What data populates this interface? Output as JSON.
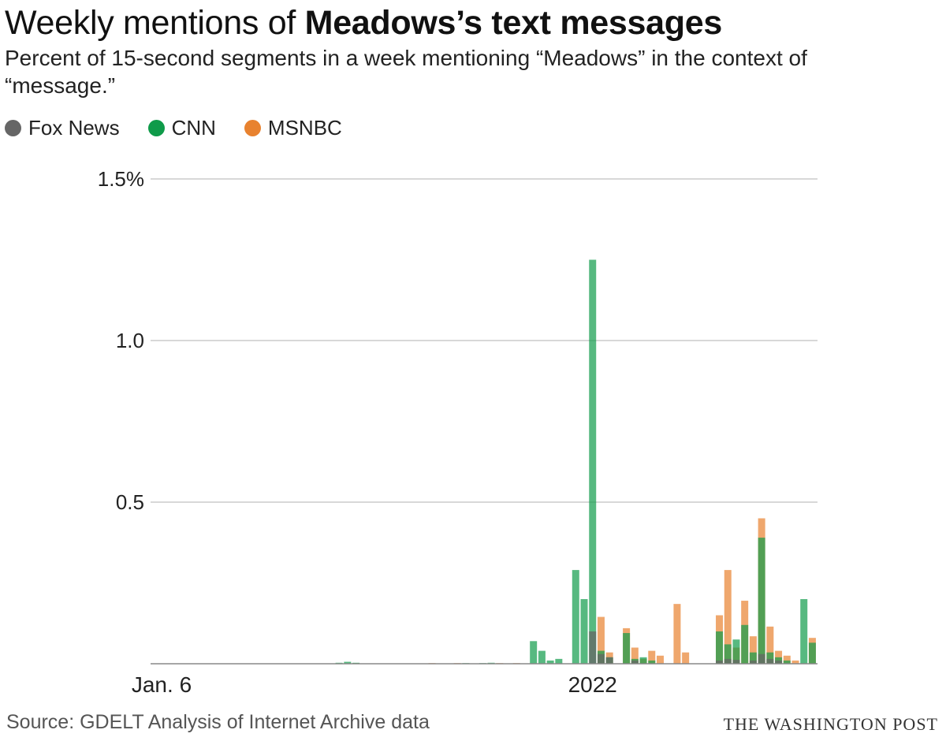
{
  "header": {
    "title_part1": "Weekly mentions of ",
    "title_part2": "Meadows’s text messages",
    "subtitle": "Percent of 15-second segments in a week mentioning “Meadows” in the context of “message.”"
  },
  "legend": [
    {
      "label": "Fox News",
      "color": "#666666"
    },
    {
      "label": "CNN",
      "color": "#0f9b4a"
    },
    {
      "label": "MSNBC",
      "color": "#e8822f"
    }
  ],
  "footer": {
    "source": "Source: GDELT Analysis of Internet Archive data",
    "credit": "THE WASHINGTON POST"
  },
  "chart_data": {
    "type": "bar",
    "stacking": "overlaid",
    "title": "Weekly mentions of Meadows’s text messages",
    "ylim": [
      0,
      1.5
    ],
    "y_ticks": [
      {
        "value": 0.5,
        "label": "0.5"
      },
      {
        "value": 1.0,
        "label": "1.0"
      },
      {
        "value": 1.5,
        "label": "1.5%"
      }
    ],
    "x_tick_labels": [
      {
        "week": 0,
        "label": "Jan. 6"
      },
      {
        "week": 51,
        "label": "2022"
      }
    ],
    "grid": true,
    "legend_position": "top-left",
    "week_count": 75,
    "series": [
      {
        "name": "Fox News",
        "color": "#666666",
        "points": [
          [
            51,
            0.1
          ],
          [
            52,
            0.03
          ],
          [
            53,
            0.02
          ],
          [
            56,
            0.01
          ],
          [
            66,
            0.01
          ],
          [
            67,
            0.015
          ],
          [
            68,
            0.012
          ],
          [
            70,
            0.01
          ],
          [
            71,
            0.03
          ],
          [
            72,
            0.015
          ],
          [
            73,
            0.01
          ]
        ]
      },
      {
        "name": "CNN",
        "color": "#0f9b4a",
        "points": [
          [
            21,
            0.003
          ],
          [
            22,
            0.006
          ],
          [
            23,
            0.003
          ],
          [
            36,
            0.002
          ],
          [
            38,
            0.002
          ],
          [
            39,
            0.003
          ],
          [
            44,
            0.07
          ],
          [
            45,
            0.04
          ],
          [
            46,
            0.01
          ],
          [
            47,
            0.015
          ],
          [
            49,
            0.29
          ],
          [
            50,
            0.2
          ],
          [
            51,
            1.25
          ],
          [
            52,
            0.04
          ],
          [
            53,
            0.02
          ],
          [
            55,
            0.095
          ],
          [
            56,
            0.015
          ],
          [
            57,
            0.02
          ],
          [
            58,
            0.01
          ],
          [
            66,
            0.1
          ],
          [
            67,
            0.06
          ],
          [
            68,
            0.075
          ],
          [
            69,
            0.12
          ],
          [
            70,
            0.035
          ],
          [
            71,
            0.39
          ],
          [
            72,
            0.035
          ],
          [
            73,
            0.02
          ],
          [
            74,
            0.01
          ],
          [
            76,
            0.2
          ],
          [
            77,
            0.065
          ]
        ]
      },
      {
        "name": "MSNBC",
        "color": "#e8822f",
        "points": [
          [
            23,
            0.002
          ],
          [
            32,
            0.002
          ],
          [
            35,
            0.002
          ],
          [
            40,
            0.002
          ],
          [
            42,
            0.002
          ],
          [
            52,
            0.145
          ],
          [
            53,
            0.035
          ],
          [
            55,
            0.11
          ],
          [
            56,
            0.05
          ],
          [
            57,
            0.015
          ],
          [
            58,
            0.04
          ],
          [
            59,
            0.025
          ],
          [
            61,
            0.185
          ],
          [
            62,
            0.035
          ],
          [
            66,
            0.15
          ],
          [
            67,
            0.29
          ],
          [
            68,
            0.05
          ],
          [
            69,
            0.195
          ],
          [
            70,
            0.085
          ],
          [
            71,
            0.45
          ],
          [
            72,
            0.115
          ],
          [
            73,
            0.04
          ],
          [
            74,
            0.025
          ],
          [
            75,
            0.01
          ],
          [
            77,
            0.08
          ]
        ]
      }
    ]
  }
}
